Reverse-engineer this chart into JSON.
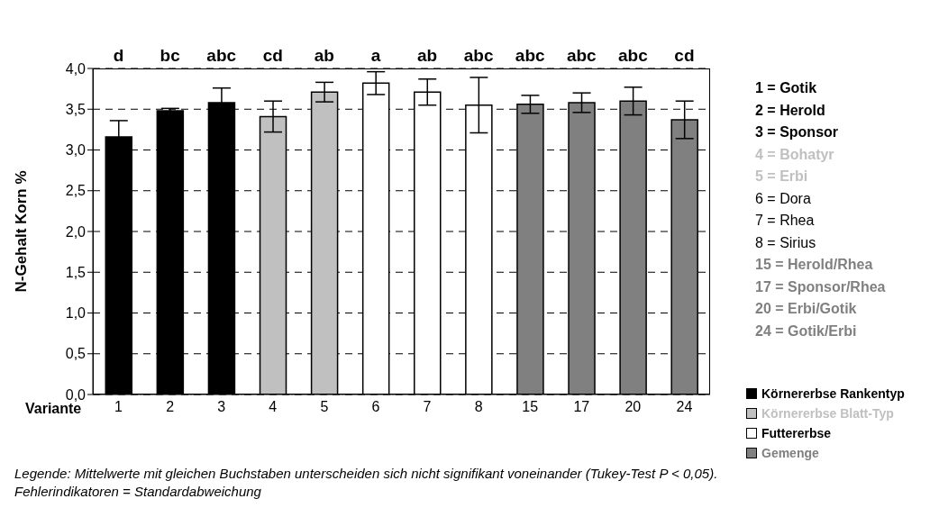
{
  "chart_data": {
    "type": "bar",
    "ylabel": "N-Gehalt Korn %",
    "xlabel": "Variante",
    "categories": [
      "1",
      "2",
      "3",
      "4",
      "5",
      "6",
      "7",
      "8",
      "15",
      "17",
      "20",
      "24"
    ],
    "series": [
      {
        "name": "Körnererbse Rankentyp",
        "color": "#000000",
        "values": [
          3.16,
          3.48,
          3.58,
          null,
          null,
          null,
          null,
          null,
          null,
          null,
          null,
          null
        ],
        "errors": [
          0.2,
          0.03,
          0.18,
          null,
          null,
          null,
          null,
          null,
          null,
          null,
          null,
          null
        ]
      },
      {
        "name": "Körnererbse Blatt-Typ",
        "color": "#c0c0c0",
        "values": [
          null,
          null,
          null,
          3.41,
          3.71,
          null,
          null,
          null,
          null,
          null,
          null,
          null
        ],
        "errors": [
          null,
          null,
          null,
          0.19,
          0.12,
          null,
          null,
          null,
          null,
          null,
          null,
          null
        ]
      },
      {
        "name": "Futtererbse",
        "color": "#ffffff",
        "values": [
          null,
          null,
          null,
          null,
          null,
          3.82,
          3.71,
          3.55,
          null,
          null,
          null,
          null
        ],
        "errors": [
          null,
          null,
          null,
          null,
          null,
          0.14,
          0.16,
          0.34,
          null,
          null,
          null,
          null
        ]
      },
      {
        "name": "Gemenge",
        "color": "#808080",
        "values": [
          null,
          null,
          null,
          null,
          null,
          null,
          null,
          null,
          3.56,
          3.58,
          3.6,
          3.37
        ],
        "errors": [
          null,
          null,
          null,
          null,
          null,
          null,
          null,
          null,
          0.11,
          0.12,
          0.17,
          0.23
        ]
      }
    ],
    "ylim": [
      0,
      4
    ],
    "yticks": [
      {
        "value": 0,
        "label": "0,0"
      },
      {
        "value": 0.5,
        "label": "0,5"
      },
      {
        "value": 1,
        "label": "1,0"
      },
      {
        "value": 1.5,
        "label": "1,5"
      },
      {
        "value": 2,
        "label": "2,0"
      },
      {
        "value": 2.5,
        "label": "2,5"
      },
      {
        "value": 3,
        "label": "3,0"
      },
      {
        "value": 3.5,
        "label": "3,5"
      },
      {
        "value": 4,
        "label": "4,0"
      }
    ],
    "grid": "y",
    "legend": "right",
    "annotations": [
      "d",
      "bc",
      "abc",
      "cd",
      "ab",
      "a",
      "ab",
      "abc",
      "abc",
      "abc",
      "abc",
      "cd",
      "1 = Gotik",
      "2 = Herold",
      "3 = Sponsor",
      "4 = Bohatyr",
      "5 = Erbi",
      "6 = Dora",
      "7 = Rhea",
      "8 = Sirius",
      "15 = Herold/Rhea",
      "17 = Sponsor/Rhea",
      "20 = Erbi/Gotik",
      "24 = Gotik/Erbi",
      "Legende: Mittelwerte mit gleichen Buchstaben unterscheiden sich nicht signifikant voneinander (Tukey-Test P < 0,05). Fehlerindikatoren = Standardabweichung"
    ]
  }
}
